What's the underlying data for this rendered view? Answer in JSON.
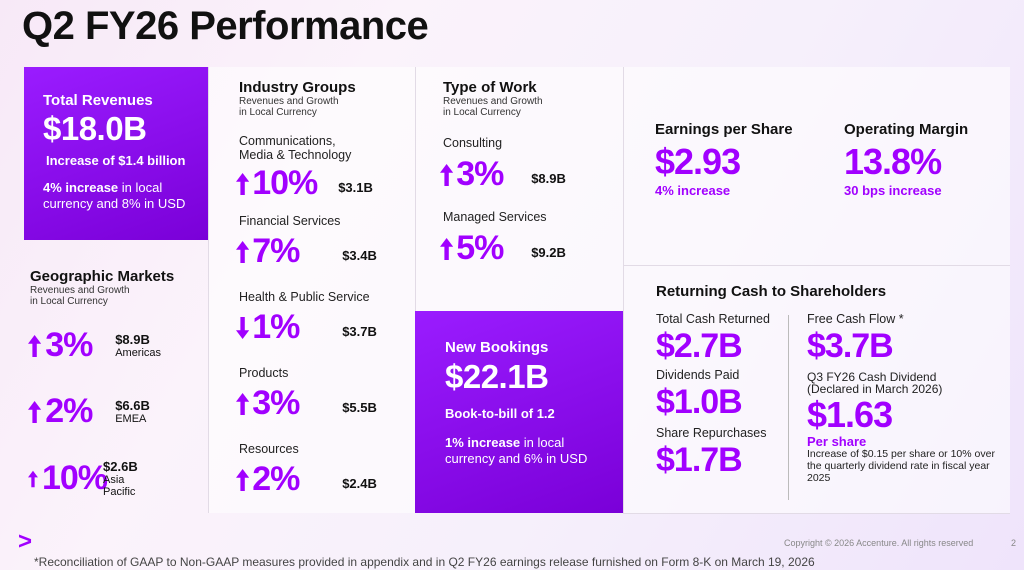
{
  "title": "Q2 FY26 Performance",
  "colors": {
    "accent": "#a100ff",
    "box_start": "#9a1cff",
    "box_end": "#7a00d8"
  },
  "total_revenues": {
    "heading": "Total Revenues",
    "value": "$18.0B",
    "increase": "Increase of $1.4 billion",
    "detail_bold": "4% increase",
    "detail_rest": " in local currency and 8% in USD"
  },
  "geographic": {
    "heading": "Geographic Markets",
    "sub1": "Revenues and Growth",
    "sub2": "in Local Currency",
    "items": [
      {
        "direction": "up",
        "pct": "3%",
        "value": "$8.9B",
        "name": "Americas"
      },
      {
        "direction": "up",
        "pct": "2%",
        "value": "$6.6B",
        "name": "EMEA"
      },
      {
        "direction": "up",
        "pct": "10%",
        "value": "$2.6B",
        "name": "Asia Pacific"
      }
    ]
  },
  "industry": {
    "heading": "Industry Groups",
    "sub1": "Revenues and Growth",
    "sub2": "in Local Currency",
    "items": [
      {
        "name": "Communications,\nMedia & Technology",
        "direction": "up",
        "pct": "10%",
        "value": "$3.1B"
      },
      {
        "name": "Financial Services",
        "direction": "up",
        "pct": "7%",
        "value": "$3.4B"
      },
      {
        "name": "Health & Public Service",
        "direction": "down",
        "pct": "1%",
        "value": "$3.7B"
      },
      {
        "name": "Products",
        "direction": "up",
        "pct": "3%",
        "value": "$5.5B"
      },
      {
        "name": "Resources",
        "direction": "up",
        "pct": "2%",
        "value": "$2.4B"
      }
    ]
  },
  "type_of_work": {
    "heading": "Type of Work",
    "sub1": "Revenues and Growth",
    "sub2": "in Local Currency",
    "items": [
      {
        "name": "Consulting",
        "direction": "up",
        "pct": "3%",
        "value": "$8.9B"
      },
      {
        "name": "Managed Services",
        "direction": "up",
        "pct": "5%",
        "value": "$9.2B"
      }
    ]
  },
  "bookings": {
    "heading": "New Bookings",
    "value": "$22.1B",
    "btb": "Book-to-bill of 1.2",
    "detail_bold": "1% increase",
    "detail_rest": " in local currency and 6% in USD"
  },
  "eps": {
    "heading": "Earnings per Share",
    "value": "$2.93",
    "change": "4% increase"
  },
  "margin": {
    "heading": "Operating Margin",
    "value": "13.8%",
    "change": "30 bps increase"
  },
  "cash": {
    "heading": "Returning Cash to Shareholders",
    "total_label": "Total Cash Returned",
    "total": "$2.7B",
    "div_label": "Dividends Paid",
    "div": "$1.0B",
    "rep_label": "Share Repurchases",
    "rep": "$1.7B",
    "fcf_label": "Free Cash Flow *",
    "fcf": "$3.7B",
    "q3_label1": "Q3 FY26 Cash Dividend",
    "q3_label2": "(Declared in March 2026)",
    "q3": "$1.63",
    "per_share": "Per share",
    "q3_note": "Increase of $0.15 per share or 10% over the quarterly dividend rate in fiscal year 2025"
  },
  "footer": {
    "logo": ">",
    "footnote": "*Reconciliation of GAAP to Non-GAAP measures provided in appendix and in Q2 FY26 earnings release furnished on Form 8-K on March 19, 2026",
    "copyright": "Copyright © 2026 Accenture. All rights reserved",
    "page": "2"
  }
}
